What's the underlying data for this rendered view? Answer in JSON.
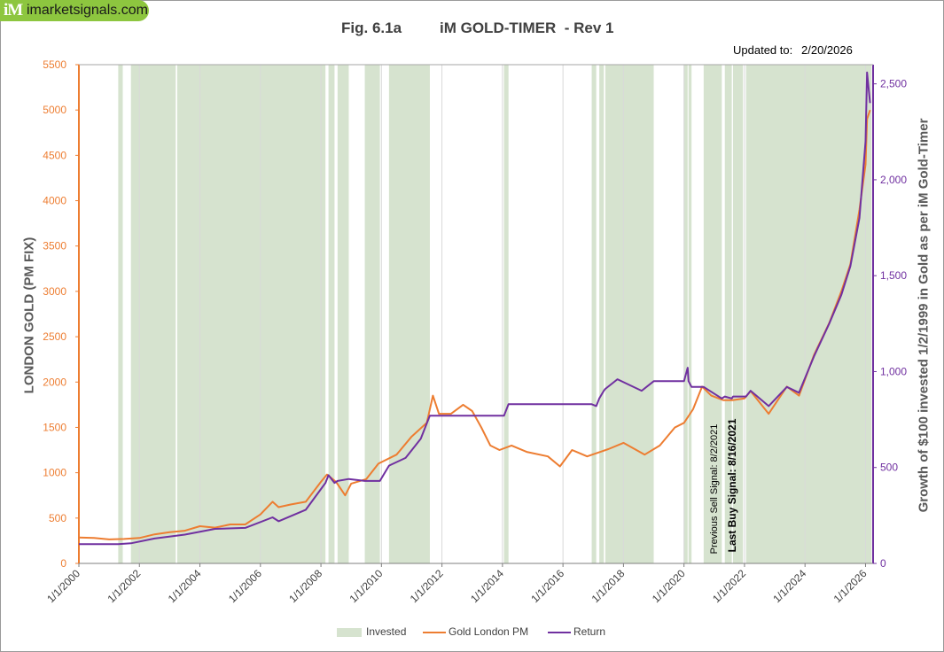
{
  "logo": {
    "mark": "iM",
    "site": "imarketsignals.com"
  },
  "title": {
    "fig": "Fig. 6.1a",
    "name": "iM GOLD-TIMER  - Rev 1"
  },
  "updated": {
    "label": "Updated to:",
    "date": "2/20/2026"
  },
  "signals": {
    "previous": "Previous Sell Signal:  8/2/2021",
    "last": "Last Buy Signal:  8/16/2021"
  },
  "legend": {
    "invested": "Invested",
    "gold": "Gold London PM",
    "return": "Return"
  },
  "colors": {
    "gold": "#ed7d31",
    "return": "#7030a0",
    "invested": "#d6e3cf",
    "left_axis": "#ed7d31",
    "right_axis": "#7030a0"
  },
  "chart_data": {
    "type": "line",
    "title": "Fig. 6.1a    iM GOLD-TIMER  - Rev 1",
    "xlabel": "",
    "ylabel_left": "LONDON GOLD (PM FIX)",
    "ylabel_right": "Growth of $100 invested 1/2/1999 in Gold as per iM Gold-Timer",
    "xlim": [
      2000.0,
      2026.25
    ],
    "ylim_left": [
      0,
      5500
    ],
    "ylim_right": [
      0,
      2600
    ],
    "x_ticks": [
      2000,
      2002,
      2004,
      2006,
      2008,
      2010,
      2012,
      2014,
      2016,
      2018,
      2020,
      2022,
      2024,
      2026
    ],
    "x_tick_labels": [
      "1/1/2000",
      "1/1/2002",
      "1/1/2004",
      "1/1/2006",
      "1/1/2008",
      "1/1/2010",
      "1/1/2012",
      "1/1/2014",
      "1/1/2016",
      "1/1/2018",
      "1/1/2020",
      "1/1/2022",
      "1/1/2024",
      "1/1/2026"
    ],
    "y_left_ticks": [
      0,
      500,
      1000,
      1500,
      2000,
      2500,
      3000,
      3500,
      4000,
      4500,
      5000,
      5500
    ],
    "y_left_tick_labels": [
      "0",
      "500",
      "1000",
      "1500",
      "2000",
      "2500",
      "3000",
      "3500",
      "4000",
      "4500",
      "5000",
      "5500"
    ],
    "y_right_ticks": [
      0,
      500,
      1000,
      1500,
      2000,
      2500
    ],
    "y_right_tick_labels": [
      "0",
      "500",
      "1,000",
      "1,500",
      "2,000",
      "2,500"
    ],
    "invested_periods": [
      [
        2001.3,
        2001.45
      ],
      [
        2001.72,
        2003.2
      ],
      [
        2003.25,
        2008.15
      ],
      [
        2008.25,
        2008.45
      ],
      [
        2008.55,
        2008.92
      ],
      [
        2009.45,
        2009.95
      ],
      [
        2010.25,
        2011.6
      ],
      [
        2014.05,
        2014.2
      ],
      [
        2016.95,
        2017.1
      ],
      [
        2017.2,
        2017.35
      ],
      [
        2017.4,
        2019.0
      ],
      [
        2020.0,
        2020.12
      ],
      [
        2020.15,
        2020.25
      ],
      [
        2020.65,
        2021.25
      ],
      [
        2021.35,
        2021.58
      ],
      [
        2021.62,
        2021.95
      ],
      [
        2022.05,
        2026.2
      ]
    ],
    "series": [
      {
        "name": "Gold London PM",
        "axis": "left",
        "x": [
          2000.0,
          2000.5,
          2001.0,
          2001.5,
          2002.0,
          2002.5,
          2003.0,
          2003.5,
          2004.0,
          2004.5,
          2005.0,
          2005.5,
          2006.0,
          2006.4,
          2006.6,
          2007.0,
          2007.5,
          2008.0,
          2008.2,
          2008.5,
          2008.8,
          2009.0,
          2009.5,
          2009.9,
          2010.5,
          2011.0,
          2011.5,
          2011.7,
          2011.9,
          2012.3,
          2012.7,
          2013.0,
          2013.3,
          2013.6,
          2013.9,
          2014.3,
          2014.8,
          2015.5,
          2015.9,
          2016.3,
          2016.8,
          2017.5,
          2018.0,
          2018.7,
          2019.2,
          2019.7,
          2020.0,
          2020.3,
          2020.6,
          2020.9,
          2021.3,
          2021.6,
          2022.0,
          2022.2,
          2022.8,
          2023.4,
          2023.8,
          2024.3,
          2024.8,
          2025.2,
          2025.5,
          2025.8,
          2026.0,
          2026.05,
          2026.15
        ],
        "values": [
          285,
          280,
          265,
          270,
          280,
          320,
          345,
          360,
          410,
          395,
          430,
          430,
          540,
          680,
          620,
          650,
          680,
          900,
          980,
          900,
          750,
          880,
          930,
          1100,
          1200,
          1400,
          1550,
          1850,
          1650,
          1650,
          1750,
          1680,
          1500,
          1300,
          1250,
          1300,
          1230,
          1180,
          1070,
          1250,
          1180,
          1260,
          1330,
          1200,
          1300,
          1500,
          1550,
          1700,
          1950,
          1850,
          1800,
          1800,
          1820,
          1900,
          1650,
          1950,
          1850,
          2300,
          2650,
          3000,
          3300,
          3900,
          4400,
          4900,
          5000
        ]
      },
      {
        "name": "Return",
        "axis": "right",
        "x": [
          2000.0,
          2001.3,
          2001.72,
          2002.5,
          2003.5,
          2004.5,
          2005.5,
          2006.4,
          2006.6,
          2007.5,
          2008.15,
          2008.25,
          2008.45,
          2008.55,
          2008.92,
          2009.45,
          2009.95,
          2010.25,
          2010.8,
          2011.3,
          2011.6,
          2014.05,
          2014.2,
          2016.95,
          2017.1,
          2017.2,
          2017.35,
          2017.4,
          2017.8,
          2018.2,
          2018.6,
          2019.0,
          2020.0,
          2020.12,
          2020.15,
          2020.25,
          2020.65,
          2021.25,
          2021.35,
          2021.58,
          2021.62,
          2021.95,
          2022.05,
          2022.2,
          2022.8,
          2023.4,
          2023.8,
          2024.3,
          2024.8,
          2025.2,
          2025.5,
          2025.8,
          2026.0,
          2026.05,
          2026.15
        ],
        "values": [
          100,
          100,
          105,
          130,
          150,
          180,
          185,
          240,
          220,
          280,
          420,
          460,
          420,
          430,
          440,
          430,
          430,
          510,
          550,
          650,
          770,
          770,
          830,
          830,
          820,
          860,
          900,
          910,
          960,
          930,
          900,
          950,
          950,
          1020,
          950,
          920,
          920,
          860,
          870,
          860,
          870,
          870,
          870,
          900,
          820,
          920,
          890,
          1080,
          1250,
          1400,
          1550,
          1800,
          2200,
          2560,
          2400
        ]
      }
    ]
  }
}
